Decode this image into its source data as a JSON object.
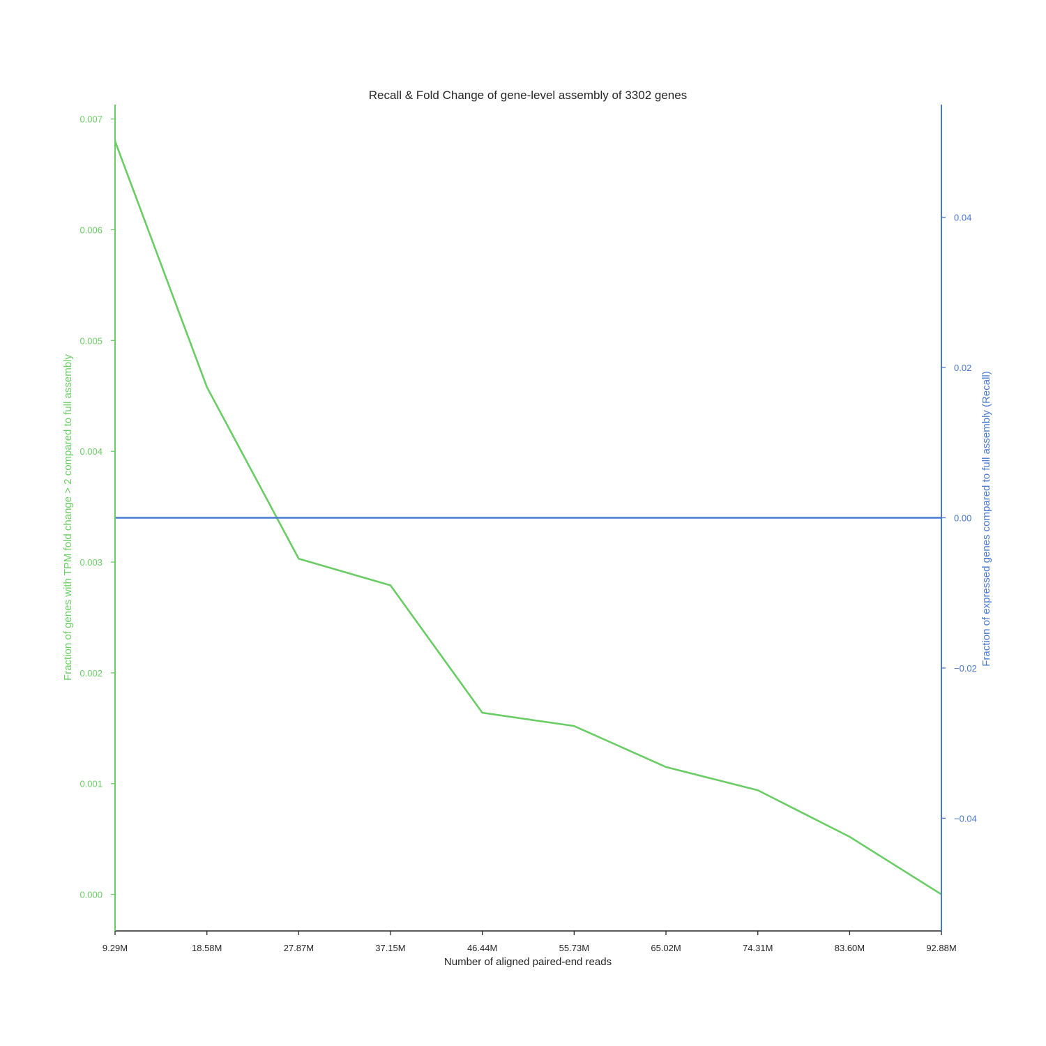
{
  "chart_data": {
    "type": "line",
    "title": "Recall & Fold Change of gene-level assembly of 3302 genes",
    "xlabel": "Number of aligned paired-end reads",
    "x": [
      9.29,
      18.58,
      27.87,
      37.15,
      46.44,
      55.73,
      65.02,
      74.31,
      83.6,
      92.88
    ],
    "x_unit": "M",
    "x_tick_labels": [
      "9.29M",
      "18.58M",
      "27.87M",
      "37.15M",
      "46.44M",
      "55.73M",
      "65.02M",
      "74.31M",
      "83.60M",
      "92.88M"
    ],
    "left_axis": {
      "label": "Fraction of genes with TPM fold change > 2 compared to full assembly",
      "color": "#6acc64",
      "ylim": [
        -0.00033,
        0.00713
      ],
      "ticks": [
        0.0,
        0.001,
        0.002,
        0.003,
        0.004,
        0.005,
        0.006,
        0.007
      ],
      "tick_labels": [
        "0.000",
        "0.001",
        "0.002",
        "0.003",
        "0.004",
        "0.005",
        "0.006",
        "0.007"
      ]
    },
    "right_axis": {
      "label": "Fraction of expressed genes compared to full assembly (Recall)",
      "color": "#4878d0",
      "ylim": [
        -0.055,
        0.055
      ],
      "ticks": [
        -0.04,
        -0.02,
        0.0,
        0.02,
        0.04
      ],
      "tick_labels": [
        "−0.04",
        "−0.02",
        "0.00",
        "0.02",
        "0.04"
      ]
    },
    "series": [
      {
        "axis": "left",
        "color": "#6acc64",
        "values": [
          0.0068,
          0.00458,
          0.00303,
          0.00279,
          0.00164,
          0.00152,
          0.00115,
          0.00094,
          0.00052,
          0.0
        ]
      },
      {
        "axis": "right",
        "color": "#4878d0",
        "values": [
          0,
          0,
          0,
          0,
          0,
          0,
          0,
          0,
          0,
          0
        ]
      }
    ],
    "grid": false,
    "legend": "none"
  }
}
